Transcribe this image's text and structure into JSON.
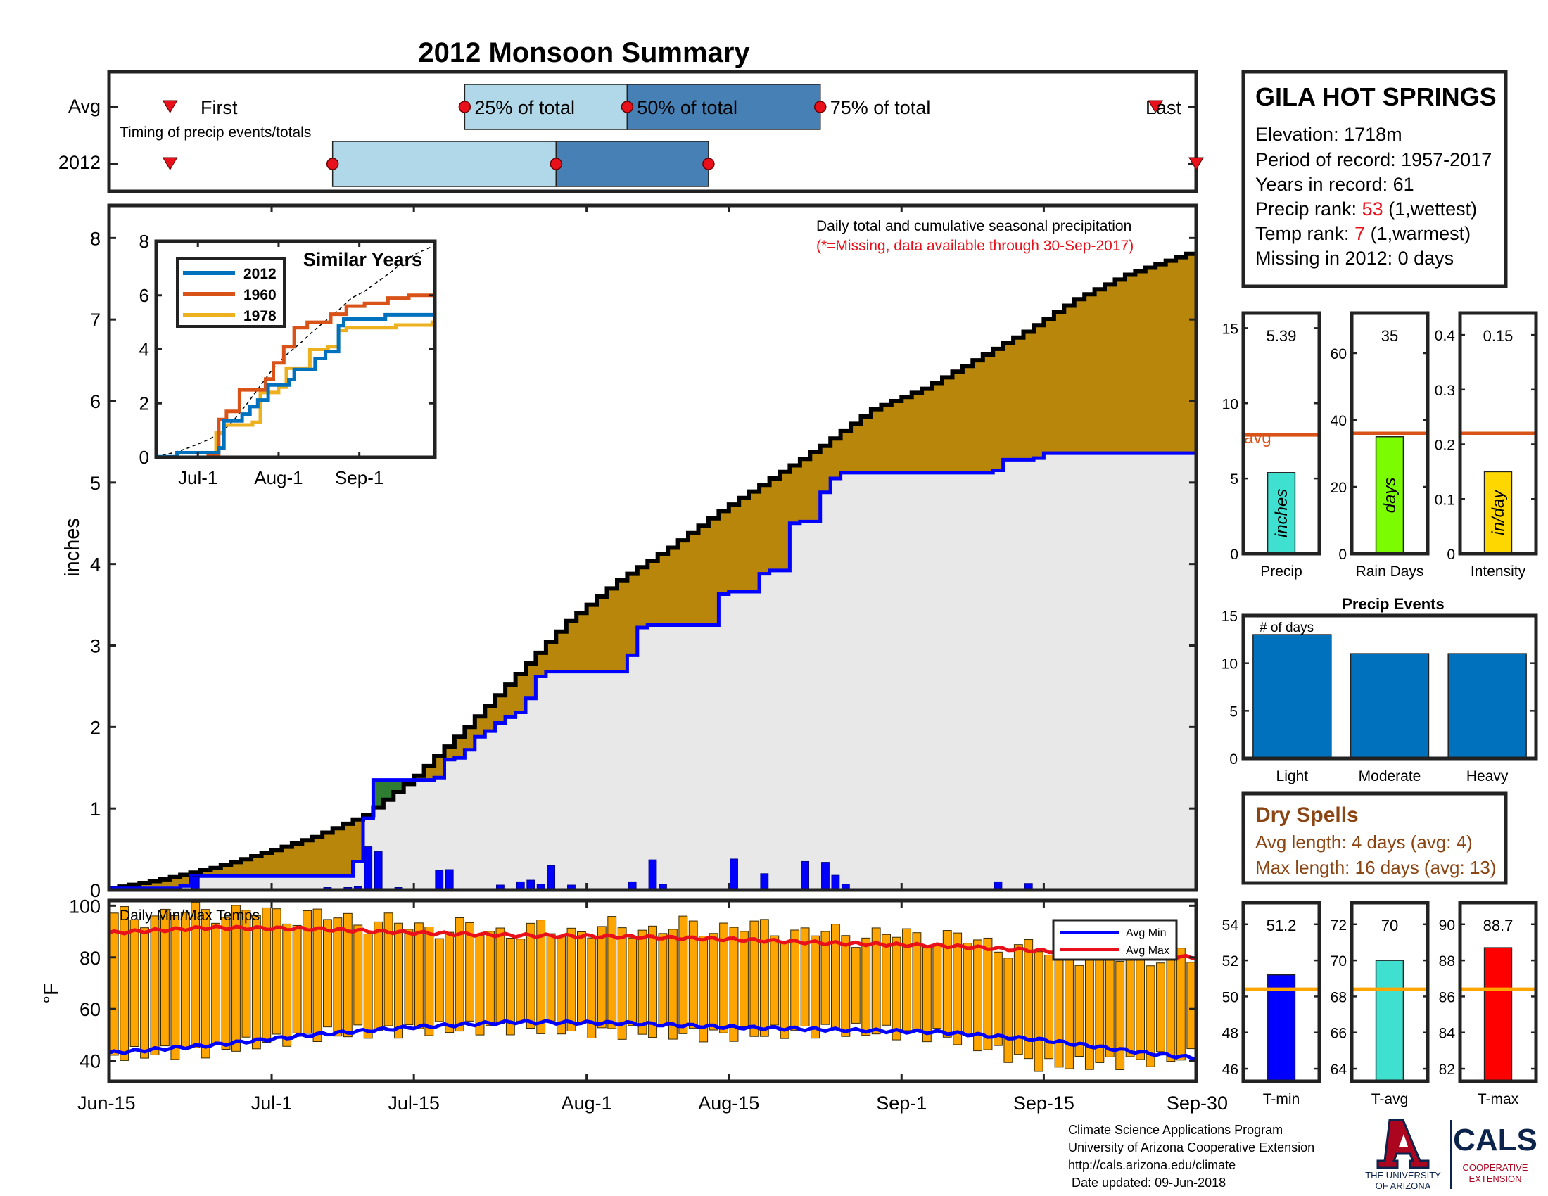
{
  "title": "2012 Monsoon Summary",
  "colors": {
    "title": "#e8101a",
    "accum_avg": "#b8860b",
    "accum_above": "#2e7d32",
    "accum_fill": "#e8e8e8",
    "line_2012": "#0000ff",
    "daily_bar": "#0000ff",
    "temp_bar": "#ffa500",
    "avg_max_line": "#e8101a",
    "avg_min_line": "#0000ff",
    "q1_box": "#b0d8e8",
    "q2_box": "#4680b4",
    "marker": "#e8101a",
    "avg_line": "#d95319",
    "precip_bar": "#40e0d0",
    "raindays_bar": "#7cfc00",
    "intensity_bar": "#ffd700",
    "events_bar": "#0072bd",
    "dry_text": "#8b4513",
    "tmin_bar": "#0000ff",
    "tavg_bar": "#40e0d0",
    "tmax_bar": "#ff0000",
    "temp_avg_line": "#ffa500",
    "sim_2012": "#0072bd",
    "sim_1960": "#d95319",
    "sim_1978": "#edb120",
    "ua_red": "#ab0520",
    "ua_blue": "#0c234b"
  },
  "timing": {
    "row_labels": [
      "Avg",
      "2012"
    ],
    "first_label": "First",
    "last_label": "Last",
    "q25_label": "25% of total",
    "q50_label": "50% of total",
    "q75_label": "75% of total",
    "caption": "Timing of precip events/totals",
    "avg": {
      "first": "2012-06-21",
      "q25": "2012-07-20",
      "q50": "2012-08-05",
      "q75": "2012-08-24",
      "last": "2012-09-26"
    },
    "y2012": {
      "first": "2012-06-21",
      "q25": "2012-07-07",
      "q50": "2012-07-29",
      "q75": "2012-08-13",
      "last": "2012-09-30"
    }
  },
  "chart_data": [
    {
      "type": "area",
      "name": "precip",
      "annotation": "Daily total and cumulative seasonal precipitation",
      "annotation_note": "(*=Missing, data available through 30-Sep-2017)",
      "ylabel": "inches",
      "ylim": [
        0,
        8.4
      ],
      "yticks": [
        0,
        1,
        2,
        3,
        4,
        5,
        6,
        7,
        8
      ],
      "xlim": [
        "2012-06-15",
        "2012-09-30"
      ],
      "xticks": [
        "2012-06-15",
        "2012-07-01",
        "2012-07-15",
        "2012-08-01",
        "2012-08-15",
        "2012-09-01",
        "2012-09-15",
        "2012-09-30"
      ],
      "xtick_labels": [
        "Jun-15",
        "Jul-1",
        "Jul-15",
        "Aug-1",
        "Aug-15",
        "Sep-1",
        "Sep-15",
        "Sep-30"
      ],
      "avg_cumulative": {
        "x": [
          "2012-06-15",
          "2012-06-20",
          "2012-06-25",
          "2012-06-30",
          "2012-07-05",
          "2012-07-10",
          "2012-07-13",
          "2012-07-15",
          "2012-07-20",
          "2012-07-25",
          "2012-07-30",
          "2012-08-04",
          "2012-08-09",
          "2012-08-14",
          "2012-08-19",
          "2012-08-24",
          "2012-08-29",
          "2012-09-03",
          "2012-09-08",
          "2012-09-13",
          "2012-09-18",
          "2012-09-23",
          "2012-09-30"
        ],
        "values": [
          0.02,
          0.13,
          0.27,
          0.45,
          0.65,
          0.92,
          1.2,
          1.4,
          2.0,
          2.65,
          3.3,
          3.8,
          4.2,
          4.65,
          5.05,
          5.45,
          5.9,
          6.15,
          6.5,
          6.85,
          7.25,
          7.55,
          7.85
        ]
      },
      "cumulative_2012": {
        "x": [
          "2012-06-15",
          "2012-06-22",
          "2012-06-23",
          "2012-07-09",
          "2012-07-10",
          "2012-07-11",
          "2012-07-17",
          "2012-07-18",
          "2012-07-19",
          "2012-07-20",
          "2012-07-21",
          "2012-07-22",
          "2012-07-23",
          "2012-07-24",
          "2012-07-25",
          "2012-07-26",
          "2012-07-27",
          "2012-07-28",
          "2012-08-05",
          "2012-08-06",
          "2012-08-07",
          "2012-08-14",
          "2012-08-15",
          "2012-08-18",
          "2012-08-19",
          "2012-08-21",
          "2012-08-22",
          "2012-08-24",
          "2012-08-25",
          "2012-08-26",
          "2012-09-10",
          "2012-09-11",
          "2012-09-14",
          "2012-09-15",
          "2012-09-30"
        ],
        "values": [
          0.02,
          0.05,
          0.17,
          0.35,
          0.88,
          1.35,
          1.38,
          1.6,
          1.62,
          1.72,
          1.88,
          1.95,
          2.05,
          2.12,
          2.18,
          2.35,
          2.62,
          2.68,
          2.88,
          3.22,
          3.25,
          3.63,
          3.66,
          3.88,
          3.92,
          4.5,
          4.52,
          4.88,
          5.05,
          5.12,
          5.15,
          5.28,
          5.3,
          5.36,
          5.36
        ]
      },
      "daily_precip": {
        "x": [
          "2012-06-23",
          "2012-07-06",
          "2012-07-08",
          "2012-07-09",
          "2012-07-10",
          "2012-07-11",
          "2012-07-13",
          "2012-07-17",
          "2012-07-18",
          "2012-07-23",
          "2012-07-25",
          "2012-07-26",
          "2012-07-27",
          "2012-07-28",
          "2012-07-30",
          "2012-08-05",
          "2012-08-07",
          "2012-08-08",
          "2012-08-15",
          "2012-08-18",
          "2012-08-22",
          "2012-08-24",
          "2012-08-25",
          "2012-08-26",
          "2012-09-10",
          "2012-09-13"
        ],
        "values": [
          0.17,
          0.03,
          0.03,
          0.04,
          0.53,
          0.47,
          0.03,
          0.24,
          0.25,
          0.06,
          0.1,
          0.12,
          0.07,
          0.3,
          0.06,
          0.1,
          0.37,
          0.07,
          0.38,
          0.2,
          0.35,
          0.34,
          0.18,
          0.07,
          0.1,
          0.08
        ]
      }
    },
    {
      "type": "line",
      "name": "similar-years",
      "title": "Similar Years",
      "ylim": [
        0,
        8
      ],
      "yticks": [
        0,
        2,
        4,
        6,
        8
      ],
      "xlim": [
        "2012-06-15",
        "2012-09-30"
      ],
      "xticks": [
        "2012-07-01",
        "2012-08-01",
        "2012-09-01"
      ],
      "xtick_labels": [
        "Jul-1",
        "Aug-1",
        "Sep-1"
      ],
      "series": [
        {
          "name": "2012",
          "x": [
            "2012-06-15",
            "2012-06-23",
            "2012-07-09",
            "2012-07-11",
            "2012-07-18",
            "2012-07-21",
            "2012-07-24",
            "2012-07-28",
            "2012-08-05",
            "2012-08-07",
            "2012-08-15",
            "2012-08-19",
            "2012-08-24",
            "2012-08-26",
            "2012-09-11",
            "2012-09-30"
          ],
          "values": [
            0.02,
            0.17,
            0.35,
            1.35,
            1.6,
            1.88,
            2.12,
            2.68,
            2.88,
            3.25,
            3.66,
            3.92,
            4.88,
            5.12,
            5.28,
            5.36
          ]
        },
        {
          "name": "1960",
          "x": [
            "2012-06-15",
            "2012-07-05",
            "2012-07-09",
            "2012-07-12",
            "2012-07-17",
            "2012-07-20",
            "2012-07-27",
            "2012-07-30",
            "2012-08-03",
            "2012-08-07",
            "2012-08-12",
            "2012-08-17",
            "2012-08-21",
            "2012-08-27",
            "2012-09-03",
            "2012-09-12",
            "2012-09-20",
            "2012-09-30"
          ],
          "values": [
            0.0,
            0.1,
            1.4,
            1.7,
            2.5,
            2.5,
            2.9,
            3.5,
            4.1,
            4.8,
            5.0,
            5.0,
            5.3,
            5.6,
            5.7,
            5.9,
            6.0,
            6.0
          ]
        },
        {
          "name": "1978",
          "x": [
            "2012-06-15",
            "2012-07-04",
            "2012-07-08",
            "2012-07-11",
            "2012-07-22",
            "2012-07-25",
            "2012-08-01",
            "2012-08-04",
            "2012-08-10",
            "2012-08-13",
            "2012-08-20",
            "2012-08-24",
            "2012-08-27",
            "2012-09-05",
            "2012-09-15",
            "2012-09-29",
            "2012-09-30"
          ],
          "values": [
            0.0,
            0.0,
            0.9,
            1.2,
            1.3,
            2.4,
            2.6,
            3.3,
            3.3,
            4.0,
            4.1,
            4.7,
            4.8,
            4.8,
            4.9,
            5.0,
            5.4
          ]
        }
      ]
    },
    {
      "type": "bar",
      "name": "temps",
      "annotation": "Daily Min/Max Temps",
      "ylabel": "°F",
      "ylim": [
        32,
        102
      ],
      "yticks": [
        40,
        60,
        80,
        100
      ],
      "legend": [
        "Avg Min",
        "Avg Max"
      ],
      "legend_position": "top-right",
      "daily_min_knots": {
        "x": [
          "2012-06-15",
          "2012-06-25",
          "2012-07-05",
          "2012-07-15",
          "2012-07-25",
          "2012-08-05",
          "2012-08-15",
          "2012-08-25",
          "2012-09-05",
          "2012-09-15",
          "2012-09-25",
          "2012-09-30"
        ],
        "values": [
          42,
          44,
          50,
          52,
          53,
          51,
          50,
          52,
          50,
          38,
          40,
          42
        ]
      },
      "daily_max_knots": {
        "x": [
          "2012-06-15",
          "2012-06-25",
          "2012-07-05",
          "2012-07-15",
          "2012-07-25",
          "2012-08-05",
          "2012-08-15",
          "2012-08-25",
          "2012-09-05",
          "2012-09-15",
          "2012-09-25",
          "2012-09-30"
        ],
        "values": [
          95,
          98,
          96,
          92,
          90,
          91,
          92,
          89,
          88,
          82,
          80,
          80
        ]
      },
      "avg_max_knots": {
        "x": [
          "2012-06-15",
          "2012-06-25",
          "2012-07-05",
          "2012-07-15",
          "2012-07-25",
          "2012-08-05",
          "2012-08-15",
          "2012-08-25",
          "2012-09-05",
          "2012-09-15",
          "2012-09-25",
          "2012-09-30"
        ],
        "values": [
          89.5,
          91.5,
          91,
          89.5,
          88.5,
          88,
          87,
          85.5,
          84.5,
          82.5,
          80.5,
          80
        ]
      },
      "avg_min_knots": {
        "x": [
          "2012-06-15",
          "2012-06-25",
          "2012-07-05",
          "2012-07-15",
          "2012-07-25",
          "2012-08-05",
          "2012-08-15",
          "2012-08-25",
          "2012-09-05",
          "2012-09-15",
          "2012-09-25",
          "2012-09-30"
        ],
        "values": [
          43,
          46,
          50,
          53,
          55,
          54.5,
          53,
          52,
          51,
          48,
          43,
          41
        ]
      }
    },
    {
      "type": "bar",
      "name": "stat-precip",
      "label": "Precip",
      "unit": "inches",
      "value": 5.39,
      "value_label": "5.39",
      "avg": 7.9,
      "avg_label": "avg",
      "ylim": [
        0,
        16
      ],
      "yticks": [
        0,
        5,
        10,
        15
      ]
    },
    {
      "type": "bar",
      "name": "stat-raindays",
      "label": "Rain Days",
      "unit": "days",
      "value": 35,
      "value_label": "35",
      "avg": 36,
      "ylim": [
        0,
        72
      ],
      "yticks": [
        0,
        20,
        40,
        60
      ]
    },
    {
      "type": "bar",
      "name": "stat-intensity",
      "label": "Intensity",
      "unit": "in/day",
      "value": 0.15,
      "value_label": "0.15",
      "avg": 0.22,
      "ylim": [
        0,
        0.44
      ],
      "yticks": [
        0,
        0.1,
        0.2,
        0.3,
        0.4
      ],
      "ytick_labels": [
        "0",
        "0.1",
        "0.2",
        "0.3",
        "0.4"
      ]
    },
    {
      "type": "bar",
      "name": "precip-events",
      "title": "Precip Events",
      "ylabel_note": "# of days",
      "categories": [
        "Light",
        "Moderate",
        "Heavy"
      ],
      "values": [
        13,
        11,
        11
      ],
      "ylim": [
        0,
        15
      ],
      "yticks": [
        0,
        5,
        10,
        15
      ]
    },
    {
      "type": "bar",
      "name": "stat-tmin",
      "label": "T-min",
      "value": 51.2,
      "value_label": "51.2",
      "avg": 50.4,
      "ylim": [
        45.3,
        55.2
      ],
      "yticks": [
        46,
        48,
        50,
        52,
        54
      ]
    },
    {
      "type": "bar",
      "name": "stat-tavg",
      "label": "T-avg",
      "value": 70,
      "value_label": "70",
      "avg": 68.4,
      "ylim": [
        63.3,
        73.2
      ],
      "yticks": [
        64,
        66,
        68,
        70,
        72
      ]
    },
    {
      "type": "bar",
      "name": "stat-tmax",
      "label": "T-max",
      "value": 88.7,
      "value_label": "88.7",
      "avg": 86.4,
      "ylim": [
        81.3,
        91.2
      ],
      "yticks": [
        82,
        84,
        86,
        88,
        90
      ]
    }
  ],
  "station": {
    "name": "GILA HOT SPRINGS",
    "elevation": "Elevation: 1718m",
    "period": "Period of record: 1957-2017",
    "years": "Years in record: 61",
    "precip_rank_prefix": "Precip rank: ",
    "precip_rank_value": "53",
    "precip_rank_suffix": " (1,wettest)",
    "temp_rank_prefix": "Temp rank: ",
    "temp_rank_value": "7",
    "temp_rank_suffix": " (1,warmest)",
    "missing": "Missing in 2012: 0 days"
  },
  "dry_spells": {
    "title": "Dry Spells",
    "avg_length": "Avg length: 4 days (avg: 4)",
    "max_length": "Max length: 16 days (avg: 13)"
  },
  "footer": {
    "line1": "Climate Science Applications Program",
    "line2": "University of Arizona Cooperative Extension",
    "line3": "http://cals.arizona.edu/climate",
    "line4": " Date updated: 09-Jun-2018"
  },
  "logo": {
    "ua_line1": "THE UNIVERSITY",
    "ua_line2": "OF ARIZONA",
    "cals": "CALS",
    "coop1": "COOPERATIVE",
    "coop2": "EXTENSION"
  }
}
